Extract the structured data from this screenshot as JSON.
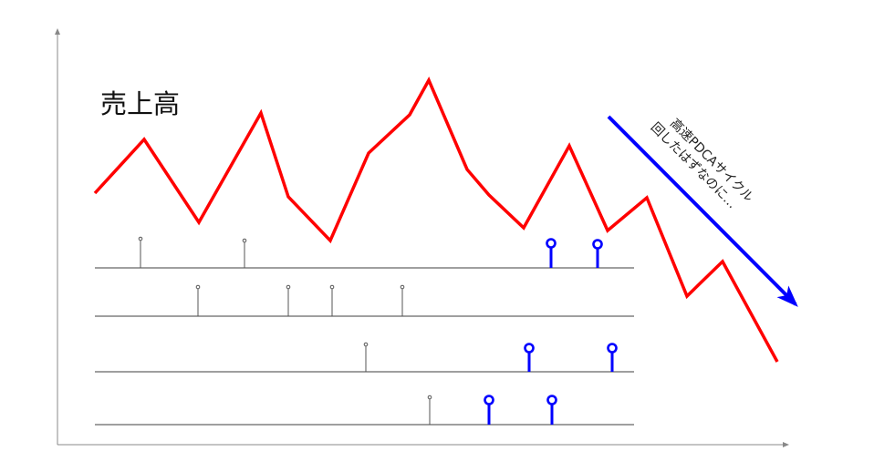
{
  "diagram": {
    "sales_label": "売上高",
    "arrow_note": [
      "高速PDCAサイクル",
      "回したはずなのに…"
    ],
    "colors": {
      "sales_line": "#ff0000",
      "arrow": "#0000ff",
      "event_small": "#555555",
      "event_large": "#0000ff",
      "timeline": "#666666",
      "axis": "#888888"
    },
    "sales_trend": "rising then falling",
    "timelines": [
      {
        "events": [
          {
            "kind": "small"
          },
          {
            "kind": "small"
          },
          {
            "kind": "large"
          },
          {
            "kind": "large"
          }
        ]
      },
      {
        "events": [
          {
            "kind": "small"
          },
          {
            "kind": "small"
          },
          {
            "kind": "small"
          },
          {
            "kind": "small"
          }
        ]
      },
      {
        "events": [
          {
            "kind": "small"
          },
          {
            "kind": "large"
          },
          {
            "kind": "large"
          }
        ]
      },
      {
        "events": [
          {
            "kind": "small"
          },
          {
            "kind": "large"
          },
          {
            "kind": "large"
          }
        ]
      }
    ]
  }
}
